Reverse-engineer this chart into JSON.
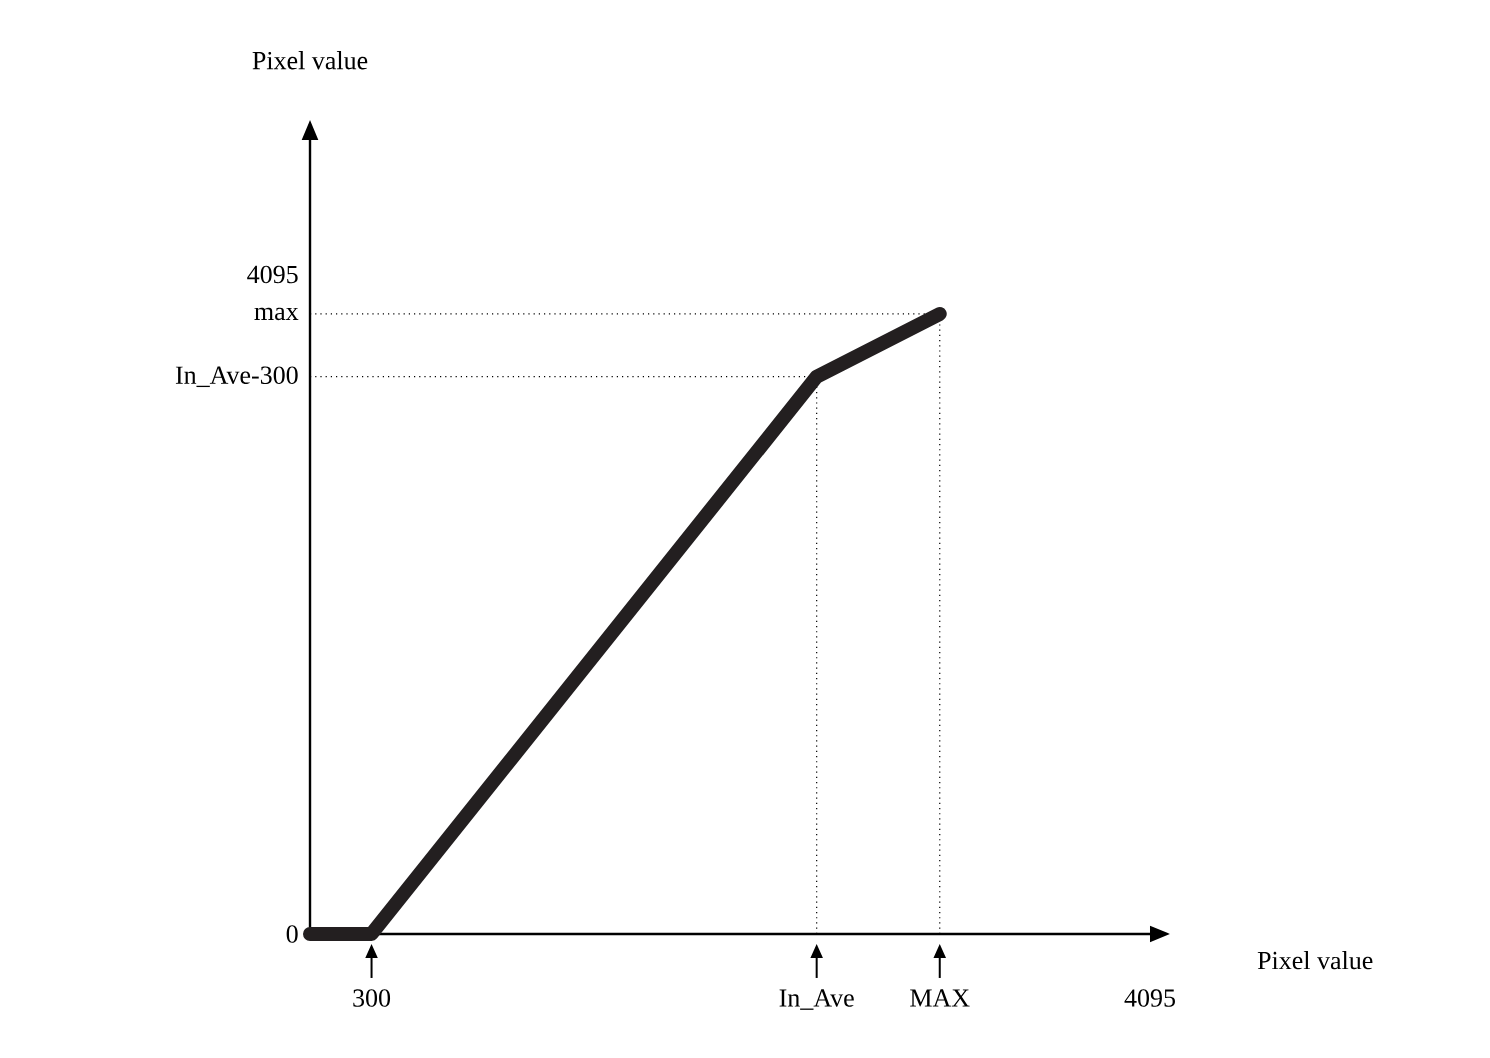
{
  "chart_data": {
    "type": "line",
    "xlabel": "Pixel value",
    "ylabel": "Pixel value",
    "x": [
      0,
      300,
      2470,
      3070
    ],
    "series": [
      {
        "color": "#231f20",
        "values": [
          0,
          0,
          3460,
          3850
        ]
      }
    ],
    "xlim": [
      0,
      4095
    ],
    "ylim": [
      0,
      4930
    ],
    "xticks": [
      300,
      {
        "value": 2470,
        "label": "In_Ave"
      },
      {
        "value": 3070,
        "label": "MAX"
      },
      4095
    ],
    "yticks": [
      0,
      {
        "value": 3460,
        "label": "In_Ave-300"
      },
      {
        "value": 3850,
        "label": "max"
      },
      4095
    ],
    "ref_lines": [
      {
        "axis": "x",
        "value": 2470,
        "line_style": "dotted"
      },
      {
        "axis": "x",
        "value": 3070,
        "line_style": "dotted"
      },
      {
        "axis": "y",
        "value": 3460,
        "line_style": "dotted"
      },
      {
        "axis": "y",
        "value": 3850,
        "line_style": "dotted"
      }
    ],
    "grid": false,
    "marker": "none",
    "line_style": "solid"
  }
}
